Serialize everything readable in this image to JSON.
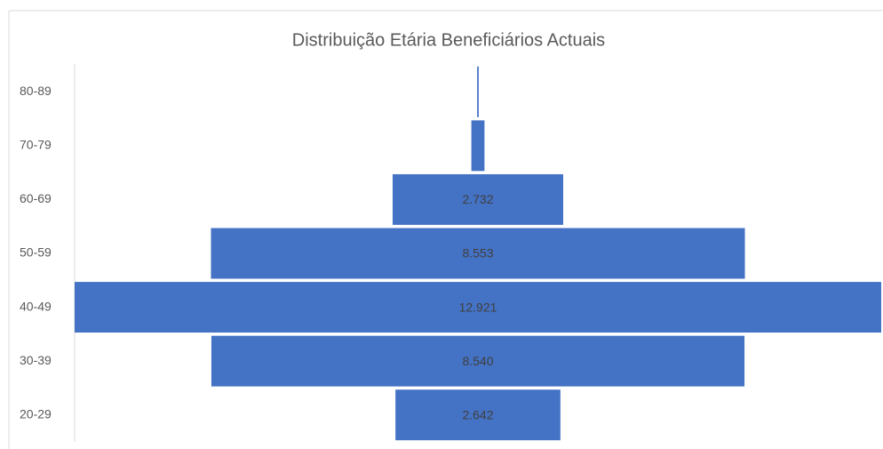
{
  "chart_data": {
    "type": "funnel",
    "title": "Distribuição Etária Beneficiários Actuais",
    "categories": [
      "80-89",
      "70-79",
      "60-69",
      "50-59",
      "40-49",
      "30-39",
      "20-29"
    ],
    "values": [
      25,
      210,
      2732,
      8553,
      12921,
      8540,
      2642
    ],
    "value_labels": [
      null,
      null,
      "2.732",
      "8.553",
      "12.921",
      "8.540",
      "2.642"
    ],
    "color": "#4472c4"
  }
}
